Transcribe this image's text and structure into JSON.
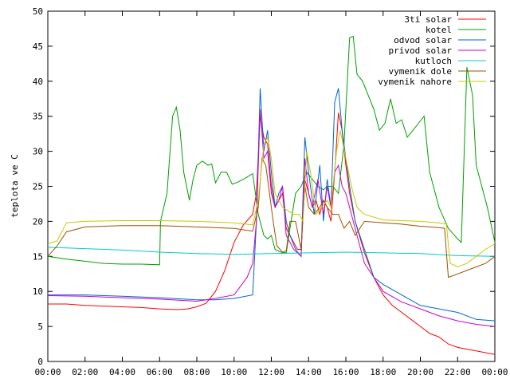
{
  "chart_data": {
    "type": "line",
    "title": "",
    "xlabel": "",
    "ylabel": "teplota ve C",
    "xlim": [
      0,
      24
    ],
    "ylim": [
      0,
      50
    ],
    "x_ticks": [
      "00:00",
      "02:00",
      "04:00",
      "06:00",
      "08:00",
      "10:00",
      "12:00",
      "14:00",
      "16:00",
      "18:00",
      "20:00",
      "22:00",
      "00:00"
    ],
    "y_ticks": [
      "0",
      "5",
      "10",
      "15",
      "20",
      "25",
      "30",
      "35",
      "40",
      "45",
      "50"
    ],
    "grid": false,
    "legend_position": "top-right",
    "series": [
      {
        "name": "3ti solar",
        "color": "#ff0000",
        "points": [
          [
            0,
            8.2
          ],
          [
            1,
            8.2
          ],
          [
            2,
            8.0
          ],
          [
            3,
            7.9
          ],
          [
            4,
            7.8
          ],
          [
            5,
            7.7
          ],
          [
            6,
            7.5
          ],
          [
            7,
            7.4
          ],
          [
            7.5,
            7.5
          ],
          [
            8,
            7.8
          ],
          [
            8.5,
            8.3
          ],
          [
            9,
            10
          ],
          [
            9.5,
            13
          ],
          [
            10,
            17
          ],
          [
            10.5,
            19.5
          ],
          [
            11,
            21
          ],
          [
            11.2,
            24
          ],
          [
            11.4,
            35
          ],
          [
            11.6,
            32
          ],
          [
            11.8,
            31
          ],
          [
            12,
            25
          ],
          [
            12.2,
            22
          ],
          [
            12.4,
            23
          ],
          [
            12.6,
            24
          ],
          [
            12.8,
            19
          ],
          [
            13,
            18
          ],
          [
            13.2,
            17
          ],
          [
            13.4,
            16
          ],
          [
            13.6,
            16
          ],
          [
            13.8,
            26
          ],
          [
            14,
            24
          ],
          [
            14.2,
            22
          ],
          [
            14.4,
            23
          ],
          [
            14.6,
            21
          ],
          [
            14.8,
            23
          ],
          [
            15,
            22
          ],
          [
            15.2,
            20
          ],
          [
            15.4,
            27
          ],
          [
            15.6,
            35.5
          ],
          [
            15.8,
            33
          ],
          [
            16,
            28
          ],
          [
            16.2,
            24
          ],
          [
            16.5,
            20
          ],
          [
            17,
            15.5
          ],
          [
            17.5,
            12
          ],
          [
            18,
            9.5
          ],
          [
            18.5,
            8
          ],
          [
            19,
            7
          ],
          [
            19.5,
            6
          ],
          [
            20,
            5
          ],
          [
            20.5,
            4
          ],
          [
            21,
            3.5
          ],
          [
            21.5,
            2.5
          ],
          [
            22,
            2
          ],
          [
            23,
            1.5
          ],
          [
            24,
            1
          ]
        ]
      },
      {
        "name": "kotel",
        "color": "#00a000",
        "points": [
          [
            0,
            15
          ],
          [
            1,
            14.6
          ],
          [
            2,
            14.3
          ],
          [
            3,
            14.0
          ],
          [
            4,
            13.9
          ],
          [
            5,
            13.9
          ],
          [
            6,
            13.8
          ],
          [
            6.05,
            20
          ],
          [
            6.4,
            24
          ],
          [
            6.7,
            35
          ],
          [
            6.9,
            36.3
          ],
          [
            7.1,
            33
          ],
          [
            7.3,
            27
          ],
          [
            7.6,
            23
          ],
          [
            7.8,
            26
          ],
          [
            8,
            28
          ],
          [
            8.3,
            28.6
          ],
          [
            8.6,
            28
          ],
          [
            8.8,
            28.2
          ],
          [
            9,
            25.5
          ],
          [
            9.3,
            27
          ],
          [
            9.6,
            27
          ],
          [
            9.9,
            25.3
          ],
          [
            10.2,
            25.6
          ],
          [
            10.5,
            26
          ],
          [
            11,
            26.8
          ],
          [
            11.3,
            21
          ],
          [
            11.6,
            18
          ],
          [
            11.8,
            17.5
          ],
          [
            12,
            18
          ],
          [
            12.2,
            16
          ],
          [
            12.5,
            15.6
          ],
          [
            12.8,
            15.5
          ],
          [
            13,
            19
          ],
          [
            13.3,
            24
          ],
          [
            13.6,
            25
          ],
          [
            13.9,
            27
          ],
          [
            14.2,
            26
          ],
          [
            14.5,
            25
          ],
          [
            14.8,
            24.5
          ],
          [
            15,
            25
          ],
          [
            15.3,
            25
          ],
          [
            15.6,
            24
          ],
          [
            15.9,
            31
          ],
          [
            16.2,
            46.2
          ],
          [
            16.4,
            46.4
          ],
          [
            16.6,
            41
          ],
          [
            16.9,
            40
          ],
          [
            17.2,
            38
          ],
          [
            17.5,
            36
          ],
          [
            17.8,
            33
          ],
          [
            18.1,
            34
          ],
          [
            18.4,
            37.5
          ],
          [
            18.7,
            34
          ],
          [
            19,
            34.5
          ],
          [
            19.3,
            32
          ],
          [
            19.6,
            33
          ],
          [
            19.9,
            34
          ],
          [
            20.2,
            35
          ],
          [
            20.5,
            27
          ],
          [
            21,
            22
          ],
          [
            21.5,
            19
          ],
          [
            22,
            17.5
          ],
          [
            22.2,
            17
          ],
          [
            22.5,
            42
          ],
          [
            22.8,
            38
          ],
          [
            23,
            28
          ],
          [
            23.3,
            25
          ],
          [
            23.6,
            22
          ],
          [
            24,
            17
          ]
        ]
      },
      {
        "name": "odvod solar",
        "color": "#0066cc",
        "points": [
          [
            0,
            9.5
          ],
          [
            2,
            9.5
          ],
          [
            4,
            9.3
          ],
          [
            6,
            9.1
          ],
          [
            8,
            8.8
          ],
          [
            9,
            8.8
          ],
          [
            10,
            9.0
          ],
          [
            11,
            9.5
          ],
          [
            11.2,
            20
          ],
          [
            11.4,
            39
          ],
          [
            11.6,
            30
          ],
          [
            11.8,
            33
          ],
          [
            12,
            27
          ],
          [
            12.2,
            22
          ],
          [
            12.4,
            24
          ],
          [
            12.6,
            25
          ],
          [
            12.8,
            20
          ],
          [
            13,
            18
          ],
          [
            13.3,
            16
          ],
          [
            13.6,
            15
          ],
          [
            13.8,
            32
          ],
          [
            14,
            27
          ],
          [
            14.3,
            21
          ],
          [
            14.6,
            28
          ],
          [
            14.8,
            20
          ],
          [
            15,
            26
          ],
          [
            15.2,
            22
          ],
          [
            15.4,
            37
          ],
          [
            15.6,
            39
          ],
          [
            15.8,
            33
          ],
          [
            16,
            29
          ],
          [
            16.2,
            25
          ],
          [
            16.5,
            20
          ],
          [
            17,
            16
          ],
          [
            17.5,
            12
          ],
          [
            18,
            11
          ],
          [
            19,
            9.5
          ],
          [
            20,
            8
          ],
          [
            21,
            7.5
          ],
          [
            22,
            7
          ],
          [
            23,
            6
          ],
          [
            24,
            5.8
          ]
        ]
      },
      {
        "name": "privod solar",
        "color": "#cc00cc",
        "points": [
          [
            0,
            9.4
          ],
          [
            2,
            9.3
          ],
          [
            4,
            9.1
          ],
          [
            6,
            8.9
          ],
          [
            8,
            8.6
          ],
          [
            9,
            9.0
          ],
          [
            10,
            9.5
          ],
          [
            10.7,
            12
          ],
          [
            11,
            14
          ],
          [
            11.2,
            20
          ],
          [
            11.4,
            36
          ],
          [
            11.6,
            29
          ],
          [
            11.8,
            30
          ],
          [
            12,
            24
          ],
          [
            12.2,
            22
          ],
          [
            12.4,
            23
          ],
          [
            12.6,
            25
          ],
          [
            12.8,
            18
          ],
          [
            13,
            17
          ],
          [
            13.2,
            16
          ],
          [
            13.6,
            15
          ],
          [
            13.8,
            29
          ],
          [
            14,
            24
          ],
          [
            14.2,
            22
          ],
          [
            14.5,
            26
          ],
          [
            14.8,
            21
          ],
          [
            15,
            25
          ],
          [
            15.2,
            22
          ],
          [
            15.4,
            27
          ],
          [
            15.6,
            28
          ],
          [
            15.8,
            25
          ],
          [
            16,
            24
          ],
          [
            16.3,
            21
          ],
          [
            16.6,
            18
          ],
          [
            17,
            14
          ],
          [
            17.5,
            12
          ],
          [
            18,
            10
          ],
          [
            19,
            8.5
          ],
          [
            20,
            7.5
          ],
          [
            21,
            6.5
          ],
          [
            22,
            5.8
          ],
          [
            23,
            5.3
          ],
          [
            24,
            5
          ]
        ]
      },
      {
        "name": "kutloch",
        "color": "#00cccc",
        "points": [
          [
            0,
            16.3
          ],
          [
            2,
            16.1
          ],
          [
            4,
            15.9
          ],
          [
            6,
            15.6
          ],
          [
            8,
            15.4
          ],
          [
            10,
            15.3
          ],
          [
            12,
            15.4
          ],
          [
            14,
            15.5
          ],
          [
            16,
            15.6
          ],
          [
            18,
            15.5
          ],
          [
            20,
            15.4
          ],
          [
            22,
            15.1
          ],
          [
            24,
            15.0
          ]
        ]
      },
      {
        "name": "vymenik dole",
        "color": "#a05000",
        "points": [
          [
            0,
            15
          ],
          [
            0.5,
            16.5
          ],
          [
            1,
            18.5
          ],
          [
            2,
            19.2
          ],
          [
            3,
            19.3
          ],
          [
            4,
            19.4
          ],
          [
            6,
            19.4
          ],
          [
            8,
            19.2
          ],
          [
            10,
            19.0
          ],
          [
            11,
            18.6
          ],
          [
            11.3,
            22
          ],
          [
            11.5,
            29
          ],
          [
            11.7,
            28
          ],
          [
            11.9,
            24
          ],
          [
            12.1,
            20
          ],
          [
            12.3,
            16.5
          ],
          [
            12.6,
            15.6
          ],
          [
            12.8,
            15.8
          ],
          [
            13,
            20
          ],
          [
            13.3,
            20
          ],
          [
            13.6,
            16
          ],
          [
            13.8,
            25
          ],
          [
            14,
            22
          ],
          [
            14.3,
            21
          ],
          [
            14.6,
            22
          ],
          [
            14.8,
            23
          ],
          [
            15,
            22
          ],
          [
            15.3,
            21
          ],
          [
            15.6,
            21
          ],
          [
            15.9,
            19
          ],
          [
            16.2,
            20
          ],
          [
            16.5,
            18
          ],
          [
            17,
            20
          ],
          [
            18,
            19.8
          ],
          [
            19,
            19.6
          ],
          [
            20,
            19.3
          ],
          [
            21,
            19.1
          ],
          [
            21.3,
            19
          ],
          [
            21.5,
            12
          ],
          [
            21.7,
            12.2
          ],
          [
            22,
            12.5
          ],
          [
            22.5,
            13
          ],
          [
            23,
            13.5
          ],
          [
            23.5,
            14
          ],
          [
            24,
            15
          ]
        ]
      },
      {
        "name": "vymenik nahore",
        "color": "#c8c800",
        "points": [
          [
            0,
            16.8
          ],
          [
            0.5,
            17.2
          ],
          [
            1,
            19.8
          ],
          [
            2,
            20
          ],
          [
            4,
            20.1
          ],
          [
            6,
            20.1
          ],
          [
            8,
            20.0
          ],
          [
            10,
            19.8
          ],
          [
            11,
            19.5
          ],
          [
            11.3,
            23
          ],
          [
            11.6,
            31
          ],
          [
            11.8,
            32
          ],
          [
            12,
            29
          ],
          [
            12.2,
            24
          ],
          [
            12.4,
            23
          ],
          [
            12.6,
            22
          ],
          [
            12.9,
            21.5
          ],
          [
            13.2,
            21
          ],
          [
            13.5,
            21
          ],
          [
            13.7,
            20
          ],
          [
            13.9,
            30
          ],
          [
            14.1,
            27
          ],
          [
            14.4,
            21
          ],
          [
            14.7,
            22
          ],
          [
            15,
            23
          ],
          [
            15.2,
            22
          ],
          [
            15.5,
            30
          ],
          [
            15.7,
            33
          ],
          [
            16,
            29
          ],
          [
            16.3,
            25
          ],
          [
            16.6,
            22
          ],
          [
            17,
            21
          ],
          [
            18,
            20.2
          ],
          [
            19,
            20.1
          ],
          [
            20,
            20
          ],
          [
            21,
            19.8
          ],
          [
            21.4,
            19.6
          ],
          [
            21.6,
            14
          ],
          [
            22,
            13.5
          ],
          [
            22.5,
            14
          ],
          [
            23,
            15
          ],
          [
            23.5,
            16
          ],
          [
            24,
            16.8
          ]
        ]
      }
    ]
  }
}
